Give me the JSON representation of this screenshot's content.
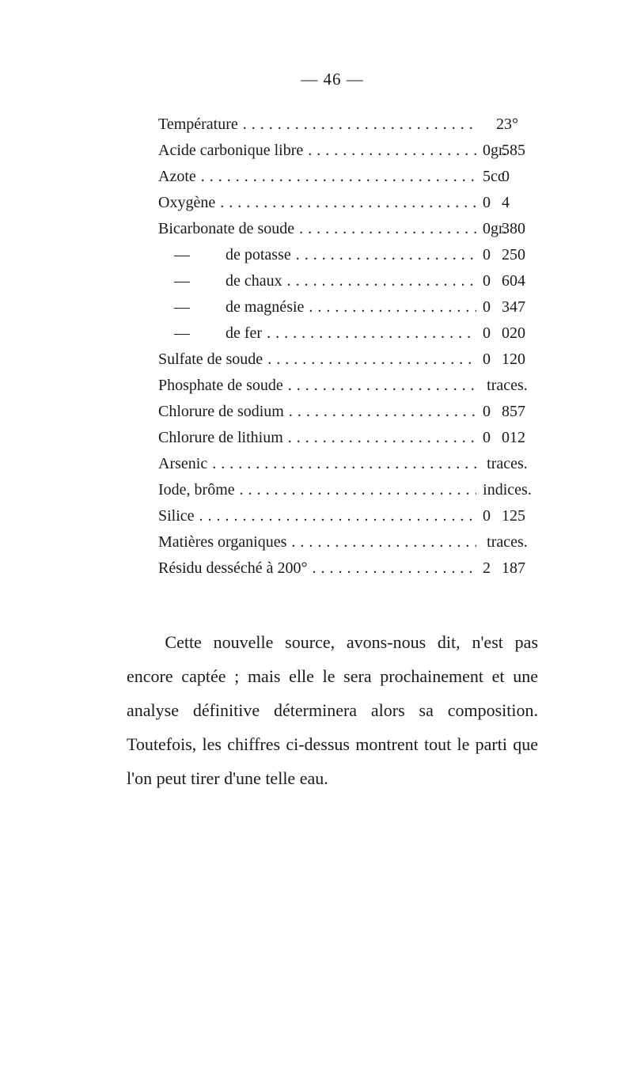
{
  "header": "— 46 —",
  "rows": [
    {
      "label": "Température",
      "value_html": "23°",
      "single": true
    },
    {
      "label": "Acide carbonique libre",
      "n1": "0",
      "sep": "gr.",
      "n2": "585"
    },
    {
      "label": "Azote",
      "n1": "5",
      "sep": "cc",
      "n2": "0"
    },
    {
      "label": "Oxygène",
      "n1": "0",
      "sep": "",
      "n2": "4"
    },
    {
      "label": "Bicarbonate de soude",
      "n1": "0",
      "sep": "gr.",
      "n2": "380"
    },
    {
      "label": " —   de potasse",
      "n1": "0",
      "sep": "",
      "n2": "250"
    },
    {
      "label": " —   de chaux",
      "n1": "0",
      "sep": "",
      "n2": "604"
    },
    {
      "label": " —   de magnésie",
      "n1": "0",
      "sep": "",
      "n2": "347"
    },
    {
      "label": " —   de fer",
      "n1": "0",
      "sep": "",
      "n2": "020"
    },
    {
      "label": "Sulfate de soude",
      "n1": "0",
      "sep": "",
      "n2": "120"
    },
    {
      "label": "Phosphate de soude",
      "value_html": "traces.",
      "single": true
    },
    {
      "label": "Chlorure de sodium",
      "n1": "0",
      "sep": "",
      "n2": "857"
    },
    {
      "label": "Chlorure de lithium",
      "n1": "0",
      "sep": "",
      "n2": "012"
    },
    {
      "label": "Arsenic",
      "value_html": "traces.",
      "single": true
    },
    {
      "label": "Iode, brôme",
      "value_html": "indices.",
      "single": true
    },
    {
      "label": "Silice",
      "n1": "0",
      "sep": "",
      "n2": "125"
    },
    {
      "label": "Matières organiques",
      "value_html": "traces.",
      "single": true
    },
    {
      "label": "Résidu desséché à 200°",
      "n1": "2",
      "sep": "",
      "n2": "187"
    }
  ],
  "paragraph": "Cette nouvelle source, avons-nous dit, n'est pas encore captée ; mais elle le sera prochainement et une analyse définitive déterminera alors sa composition. Toutefois, les chiffres ci-dessus montrent tout le parti que l'on peut tirer d'une telle eau."
}
